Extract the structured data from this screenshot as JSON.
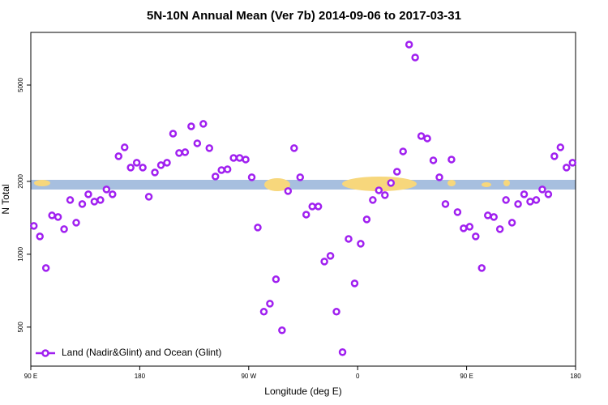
{
  "chart_data": {
    "type": "scatter",
    "title": "5N-10N Annual Mean (Ver 7b)   2014-09-06 to 2017-03-31",
    "x_label": "Longitude (deg E)",
    "y_label": "N Total",
    "xlim": [
      90,
      540
    ],
    "xticks": [
      {
        "value": 90,
        "label": "90 E"
      },
      180,
      {
        "value": 270,
        "label": "90 W"
      },
      {
        "value": 360,
        "label": "0"
      },
      {
        "value": 450,
        "label": "90 E"
      },
      {
        "value": 540,
        "label": "180"
      }
    ],
    "ylim": [
      345,
      8250
    ],
    "yticks": [
      500,
      1000,
      2000,
      5000
    ],
    "log_y": true,
    "legend_position": "bottom-left",
    "series": [
      {
        "name": "Land (Nadir&Glint) and Ocean (Glint)",
        "color": "#a020f0",
        "x": [
          92.5,
          97.5,
          102.5,
          107.5,
          112.5,
          117.5,
          122.5,
          127.5,
          132.5,
          137.5,
          142.5,
          147.5,
          152.5,
          157.5,
          162.5,
          167.5,
          172.5,
          177.5,
          182.5,
          187.5,
          192.5,
          197.5,
          202.5,
          207.5,
          212.5,
          217.5,
          222.5,
          227.5,
          232.5,
          237.5,
          242.5,
          247.5,
          252.5,
          257.5,
          262.5,
          267.5,
          272.5,
          277.5,
          282.5,
          287.5,
          292.5,
          297.5,
          302.5,
          307.5,
          312.5,
          317.5,
          322.5,
          327.5,
          332.5,
          337.5,
          342.5,
          347.5,
          352.5,
          357.5,
          362.5,
          367.5,
          372.5,
          377.5,
          382.5,
          387.5,
          392.5,
          397.5,
          402.5,
          407.5,
          412.5,
          417.5,
          422.5,
          427.5,
          432.5,
          437.5,
          442.5,
          447.5,
          452.5,
          457.5,
          462.5,
          467.5,
          472.5,
          477.5,
          482.5,
          487.5,
          492.5,
          497.5,
          502.5,
          507.5,
          512.5,
          517.5,
          522.5,
          527.5,
          532.5,
          537.5
        ],
        "values": [
          1310,
          1185,
          877,
          1447,
          1425,
          1270,
          1675,
          1350,
          1612,
          1769,
          1650,
          1675,
          1852,
          1769,
          2540,
          2764,
          2280,
          2388,
          2280,
          1728,
          2177,
          2333,
          2388,
          3150,
          2619,
          2639,
          3376,
          2872,
          3456,
          2743,
          2095,
          2227,
          2244,
          2500,
          2500,
          2462,
          2079,
          1290,
          579,
          625,
          788,
          485,
          1824,
          2743,
          2079,
          1458,
          1575,
          1575,
          933,
          985,
          579,
          394,
          1157,
          758,
          1105,
          1393,
          1675,
          1837,
          1755,
          1970,
          2193,
          2659,
          7349,
          6497,
          3078,
          3008,
          2443,
          2079,
          1612,
          2462,
          1493,
          1280,
          1299,
          1185,
          877,
          1447,
          1425,
          1270,
          1675,
          1350,
          1612,
          1769,
          1650,
          1675,
          1852,
          1769,
          2540,
          2764,
          2280,
          2388
        ]
      }
    ]
  }
}
